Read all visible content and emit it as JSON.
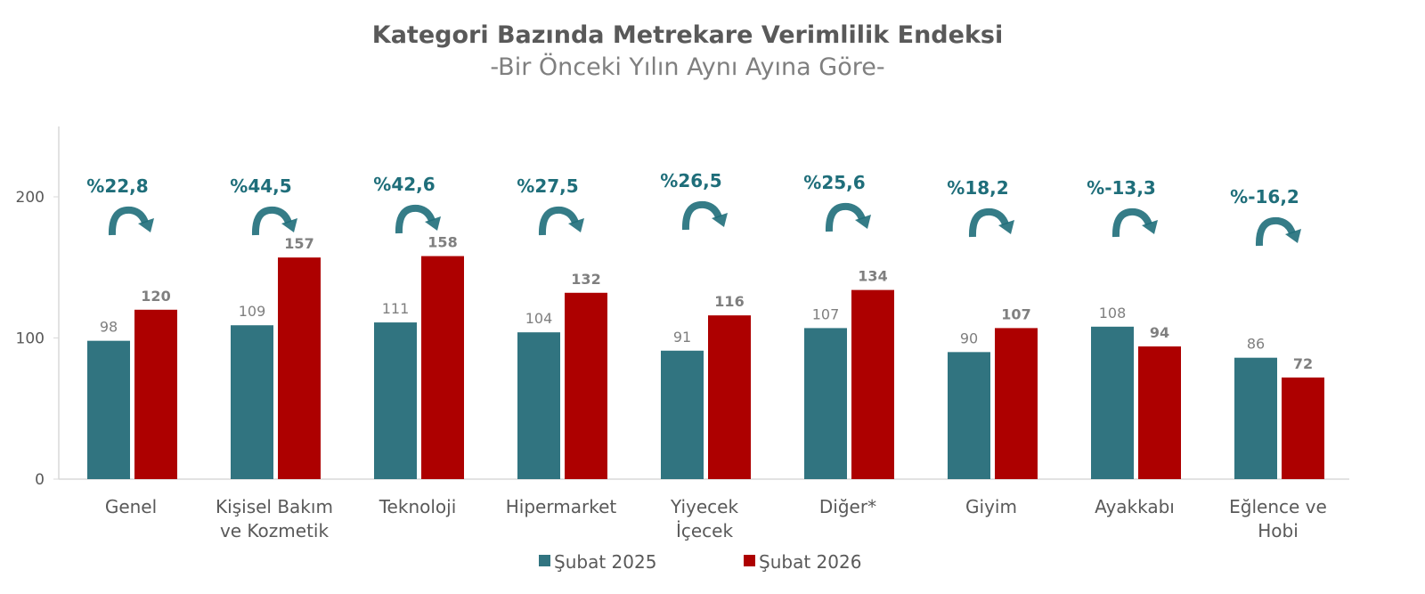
{
  "chart_data": {
    "type": "bar",
    "title": "Kategori Bazında Metrekare Verimlilik Endeksi",
    "subtitle": "-Bir Önceki Yılın Aynı Ayına Göre-",
    "categories": [
      [
        "Genel"
      ],
      [
        "Kişisel Bakım",
        "ve Kozmetik"
      ],
      [
        "Teknoloji"
      ],
      [
        "Hipermarket"
      ],
      [
        "Yiyecek",
        "İçecek"
      ],
      [
        "Diğer*"
      ],
      [
        "Giyim"
      ],
      [
        "Ayakkabı"
      ],
      [
        "Eğlence ve",
        "Hobi"
      ]
    ],
    "series": [
      {
        "name": "Şubat 2025",
        "color": "#317480",
        "values": [
          98,
          109,
          111,
          104,
          91,
          107,
          90,
          108,
          86
        ]
      },
      {
        "name": "Şubat 2026",
        "color": "#AD0000",
        "values": [
          120,
          157,
          158,
          132,
          116,
          134,
          107,
          94,
          72
        ]
      }
    ],
    "annotations": [
      "%22,8",
      "%44,5",
      "%42,6",
      "%27,5",
      "%26,5",
      "%25,6",
      "%18,2",
      "%-13,3",
      "%-16,2"
    ],
    "annotation_icon": "curved-arrow-icon",
    "annotation_color": "#1f6e7a",
    "yticks": [
      0,
      100,
      200
    ],
    "ylim": [
      0,
      250
    ],
    "grid": false,
    "legend": "bottom"
  }
}
